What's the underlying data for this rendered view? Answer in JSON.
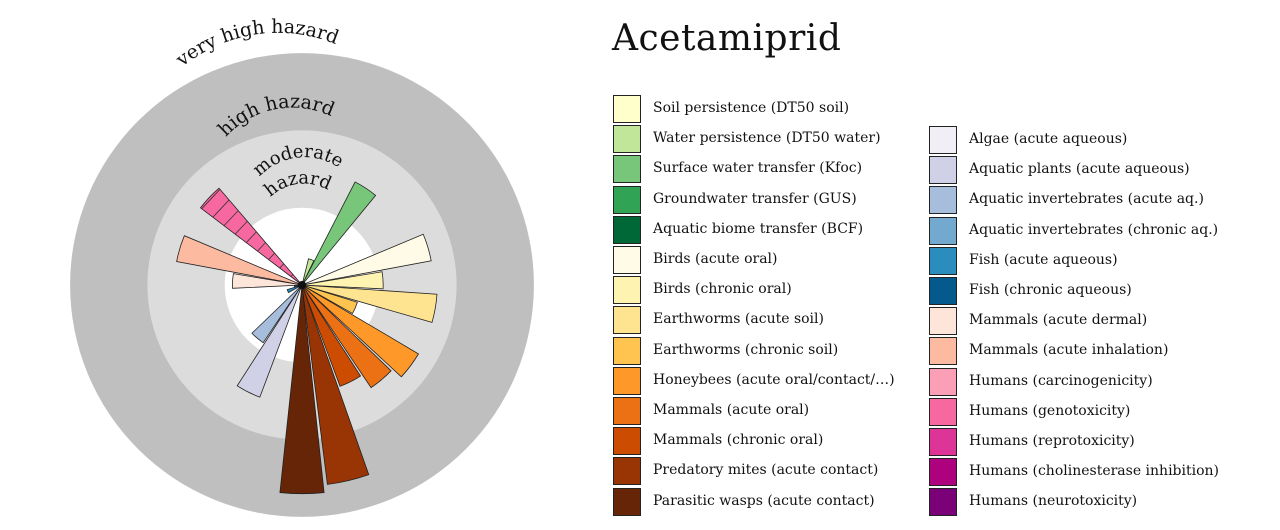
{
  "chart_data": {
    "type": "polar-bar",
    "title": "Acetamiprid",
    "hazard_zones": [
      {
        "label": "moderate hazard",
        "outer": 1,
        "color": "#ffffff"
      },
      {
        "label": "high hazard",
        "outer": 2,
        "color": "#dcdcdc"
      },
      {
        "label": "very high hazard",
        "outer": 3,
        "color": "#bfbfbf"
      }
    ],
    "categories": [
      {
        "label": "Soil persistence (DT50 soil)",
        "color": "#ffffcc",
        "value": null
      },
      {
        "label": "Water persistence (DT50 water)",
        "color": "#c2e699",
        "value": 0.35
      },
      {
        "label": "Surface water transfer (Kfoc)",
        "color": "#78c679",
        "value": 1.5
      },
      {
        "label": "Groundwater transfer (GUS)",
        "color": "#31a354",
        "value": null
      },
      {
        "label": "Aquatic biome transfer (BCF)",
        "color": "#006837",
        "value": null
      },
      {
        "label": "Birds (acute oral)",
        "color": "#fffbe6",
        "value": 1.7
      },
      {
        "label": "Birds (chronic oral)",
        "color": "#fff3b2",
        "value": 1.05
      },
      {
        "label": "Earthworms (acute soil)",
        "color": "#fee391",
        "value": 1.75
      },
      {
        "label": "Earthworms (chronic soil)",
        "color": "#fec44f",
        "value": 0.75
      },
      {
        "label": "Honeybees (acute oral/contact/…)",
        "color": "#fe9929",
        "value": 1.75
      },
      {
        "label": "Mammals (acute oral)",
        "color": "#ec7014",
        "value": 1.6
      },
      {
        "label": "Mammals (chronic oral)",
        "color": "#cc4c02",
        "value": 1.4
      },
      {
        "label": "Predatory mites (acute contact)",
        "color": "#993404",
        "value": 2.6
      },
      {
        "label": "Parasitic wasps (acute contact)",
        "color": "#662506",
        "value": 2.7
      },
      {
        "label": "Algae (acute aqueous)",
        "color": "#f1eef6",
        "value": null
      },
      {
        "label": "Aquatic plants (acute aqueous)",
        "color": "#d0d1e6",
        "value": 1.55
      },
      {
        "label": "Aquatic invertebrates (acute aq.)",
        "color": "#a6bddb",
        "value": 0.9
      },
      {
        "label": "Aquatic invertebrates (chronic aq.)",
        "color": "#74a9cf",
        "value": null
      },
      {
        "label": "Fish (acute aqueous)",
        "color": "#2b8cbe",
        "value": 0.2
      },
      {
        "label": "Fish (chronic aqueous)",
        "color": "#045a8d",
        "value": 0.1
      },
      {
        "label": "Mammals (acute dermal)",
        "color": "#fee5d9",
        "value": 0.9
      },
      {
        "label": "Mammals (acute inhalation)",
        "color": "#fcbba1",
        "value": 1.65
      },
      {
        "label": "Humans (carcinogenicity)",
        "color": "#fa9fb5",
        "value": null
      },
      {
        "label": "Humans (genotoxicity)",
        "color": "#f768a1",
        "value": 1.65,
        "hatched": true
      },
      {
        "label": "Humans (reprotoxicity)",
        "color": "#dd3497",
        "value": null
      },
      {
        "label": "Humans (cholinesterase inhibition)",
        "color": "#ae017e",
        "value": null
      },
      {
        "label": "Humans (neurotoxicity)",
        "color": "#7a0177",
        "value": null
      }
    ]
  }
}
